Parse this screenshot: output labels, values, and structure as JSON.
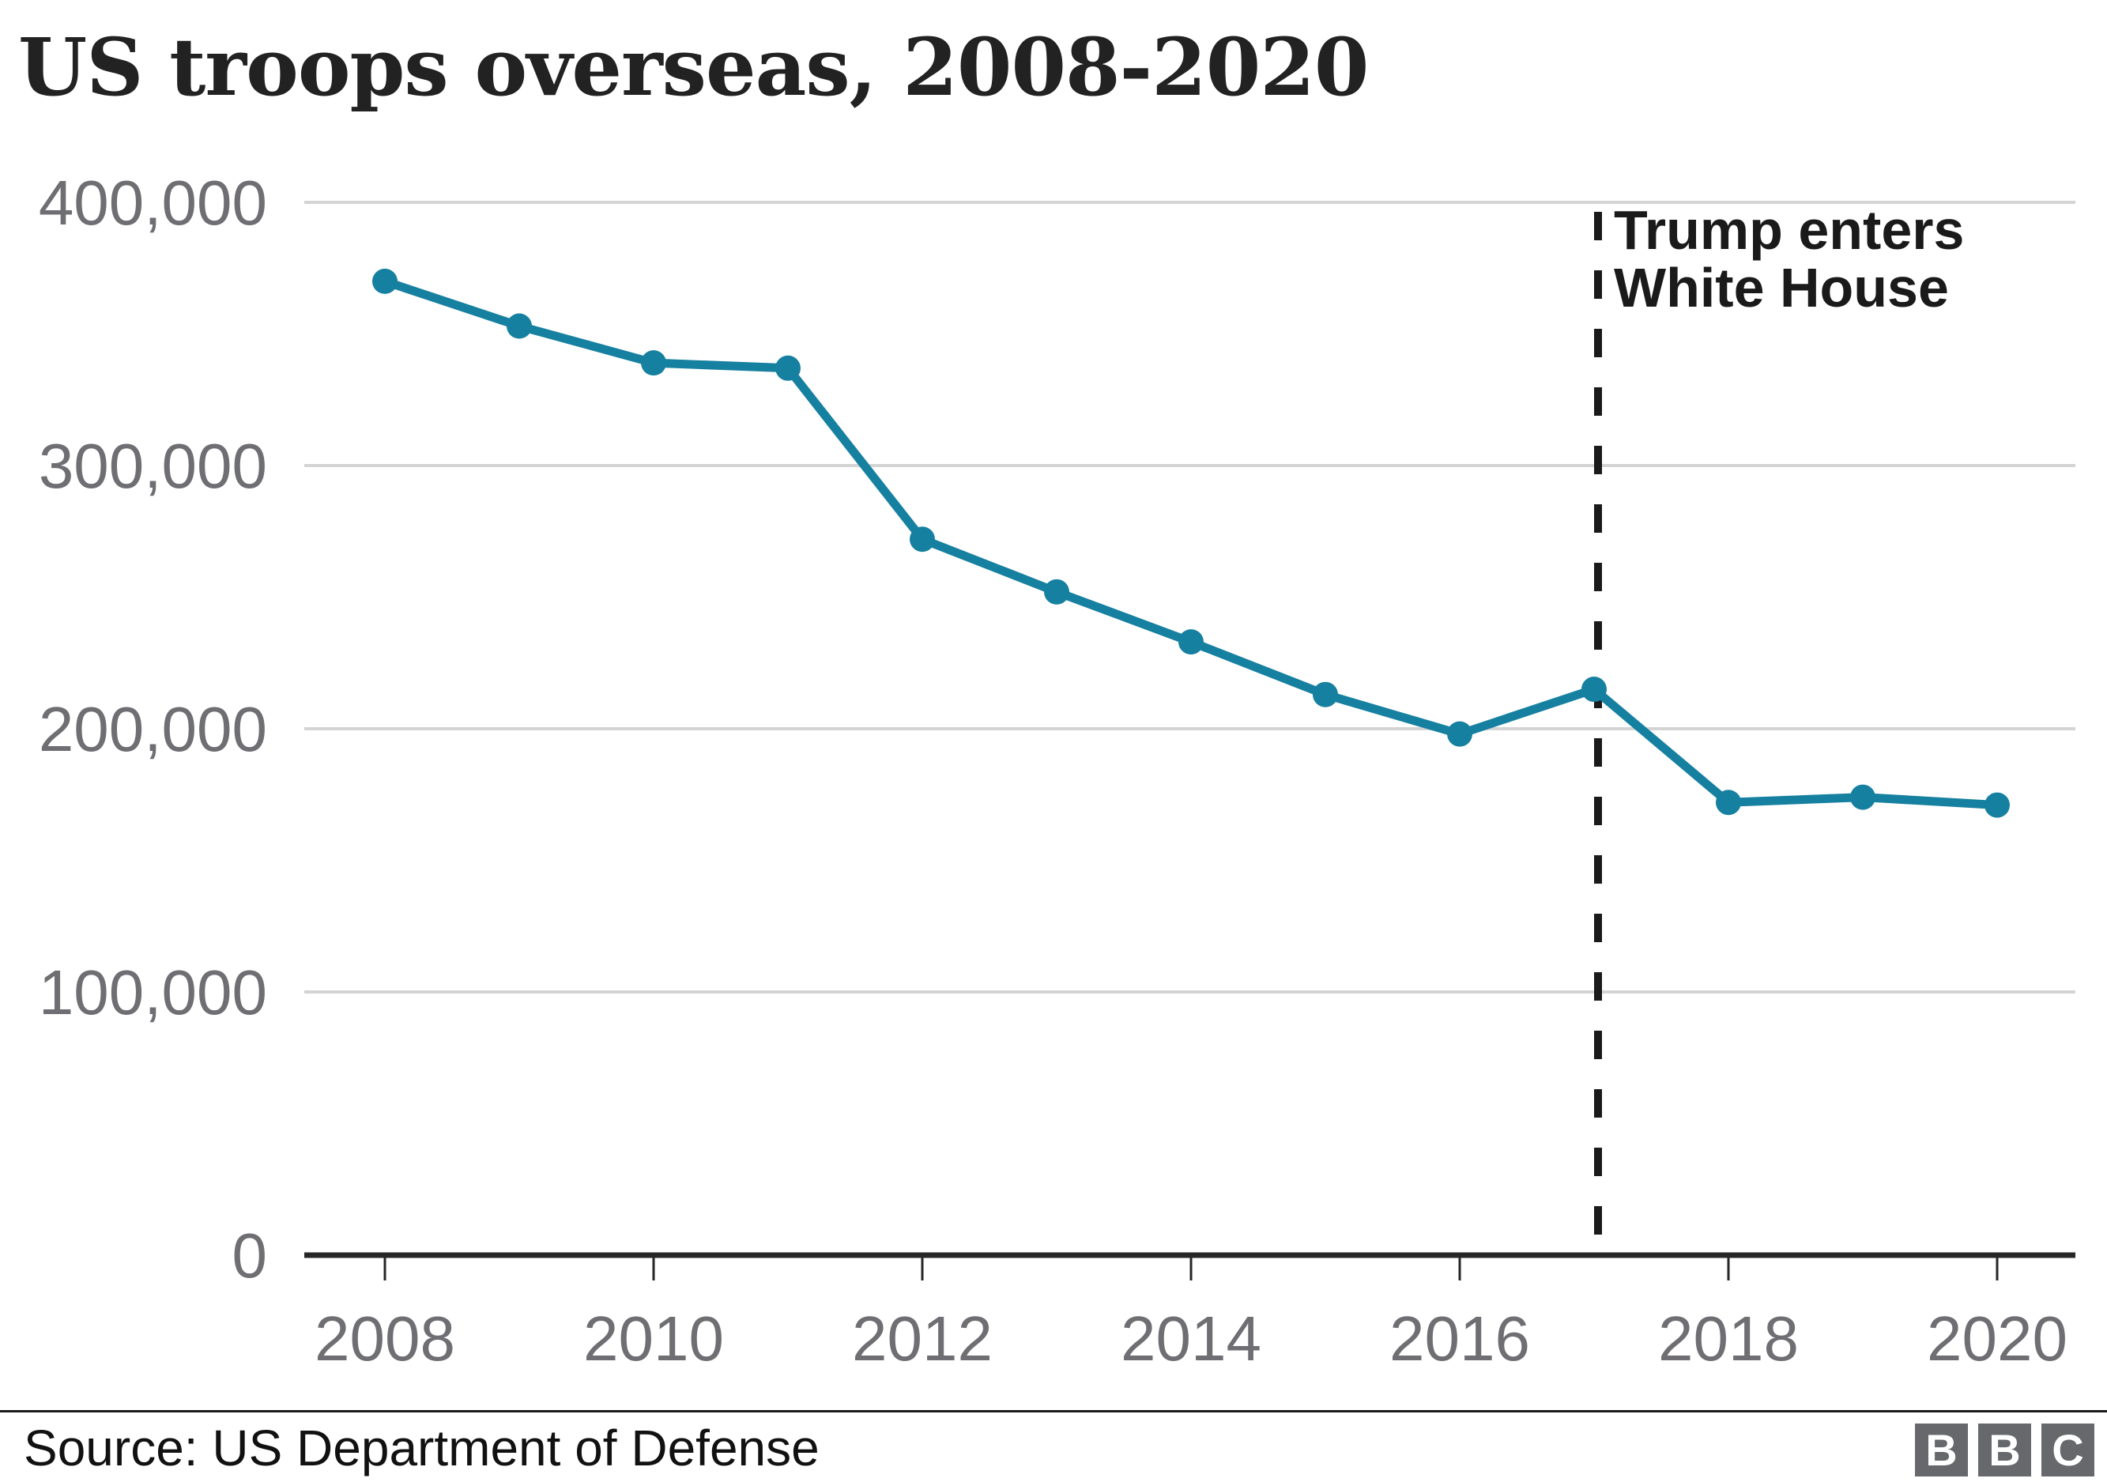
{
  "header": {
    "title": "US troops overseas, 2008-2020"
  },
  "annotation": {
    "line1": "Trump enters",
    "line2": "White House",
    "at_year": 2017
  },
  "footer": {
    "source": "Source: US Department of Defense",
    "logo_letters": [
      "B",
      "B",
      "C"
    ]
  },
  "colors": {
    "line": "#1680A0",
    "grid": "#d4d4d4",
    "axis": "#262626",
    "tick_label": "#6e6e73",
    "text": "#1a1a1a",
    "logo_square": "#66686c"
  },
  "chart_data": {
    "type": "line",
    "title": "US troops overseas, 2008-2020",
    "x": [
      2008,
      2009,
      2010,
      2011,
      2012,
      2013,
      2014,
      2015,
      2016,
      2017,
      2018,
      2019,
      2020
    ],
    "series": [
      {
        "name": "US troops overseas",
        "values": [
          370000,
          353000,
          339000,
          337000,
          272000,
          252000,
          233000,
          213000,
          198000,
          215000,
          172000,
          174000,
          171000
        ]
      }
    ],
    "x_ticks": [
      2008,
      2010,
      2012,
      2014,
      2016,
      2018,
      2020
    ],
    "x_tick_labels": [
      "2008",
      "2010",
      "2012",
      "2014",
      "2016",
      "2018",
      "2020"
    ],
    "y_ticks": [
      {
        "value": 0,
        "label": "0"
      },
      {
        "value": 100000,
        "label": "100,000"
      },
      {
        "value": 200000,
        "label": "200,000"
      },
      {
        "value": 300000,
        "label": "300,000"
      },
      {
        "value": 400000,
        "label": "400,000"
      }
    ],
    "ylim": [
      0,
      400000
    ],
    "grid": "horizontal",
    "legend": "none",
    "annotation": {
      "text": [
        "Trump enters",
        "White House"
      ],
      "x": 2017,
      "style": "dashed-vertical-line"
    }
  }
}
